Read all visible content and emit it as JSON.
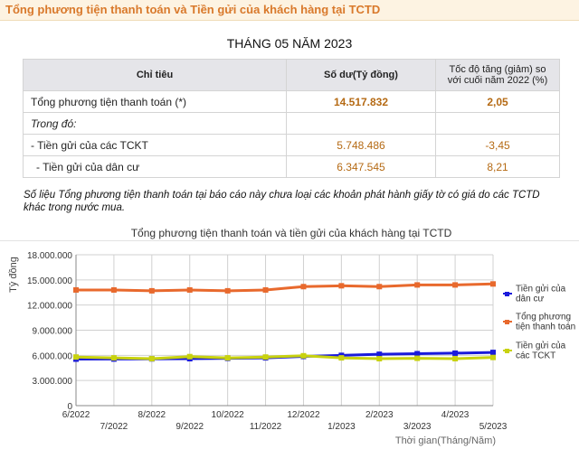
{
  "header": {
    "title": "Tổng phương tiện thanh toán và Tiền gửi của khách hàng tại TCTD"
  },
  "report": {
    "month_title": "THÁNG 05 NĂM 2023"
  },
  "table": {
    "headers": [
      "Chỉ tiêu",
      "Số dư(Tỷ đồng)",
      "Tốc độ tăng (giảm) so với cuối năm 2022 (%)"
    ],
    "rows": [
      {
        "label": "Tổng phương tiện thanh toán (*)",
        "balance": "14.517.832",
        "growth": "2,05"
      },
      {
        "label": "Trong đó:",
        "balance": "",
        "growth": ""
      },
      {
        "label": "- Tiền gửi của các TCKT",
        "balance": "5.748.486",
        "growth": "-3,45"
      },
      {
        "label": "- Tiền gửi của dân cư",
        "balance": "6.347.545",
        "growth": "8,21"
      }
    ]
  },
  "footnote": "Số liệu Tổng phương tiện thanh toán tại báo cáo này chưa loại các khoản phát hành giấy tờ có giá do các TCTD khác trong nước mua.",
  "chart_data": {
    "type": "line",
    "title": "Tổng phương tiện thanh toán và tiền gửi của khách hàng tại TCTD",
    "xlabel": "Thời gian(Tháng/Năm)",
    "ylabel": "Tỷ đồng",
    "categories": [
      "6/2022",
      "7/2022",
      "8/2022",
      "9/2022",
      "10/2022",
      "11/2022",
      "12/2022",
      "1/2023",
      "2/2023",
      "3/2023",
      "4/2023",
      "5/2023"
    ],
    "ylim": [
      0,
      18000000
    ],
    "yticks": [
      "0",
      "3.000.000",
      "6.000.000",
      "9.000.000",
      "12.000.000",
      "15.000.000",
      "18.000.000"
    ],
    "grid": true,
    "legend": "right",
    "series": [
      {
        "name": "Tiền gửi của dân cư",
        "color": "#1a1adb",
        "values": [
          5550000,
          5560000,
          5580000,
          5600000,
          5640000,
          5700000,
          5870000,
          6000000,
          6130000,
          6200000,
          6260000,
          6347545
        ]
      },
      {
        "name": "Tổng phương tiện thanh toán",
        "color": "#e8692d",
        "values": [
          13800000,
          13800000,
          13700000,
          13800000,
          13700000,
          13800000,
          14200000,
          14300000,
          14200000,
          14400000,
          14400000,
          14517832
        ]
      },
      {
        "name": "Tiền gửi của các TCKT",
        "color": "#c8d20f",
        "values": [
          5800000,
          5700000,
          5600000,
          5850000,
          5700000,
          5800000,
          5950000,
          5700000,
          5600000,
          5650000,
          5600000,
          5748486
        ]
      }
    ]
  }
}
